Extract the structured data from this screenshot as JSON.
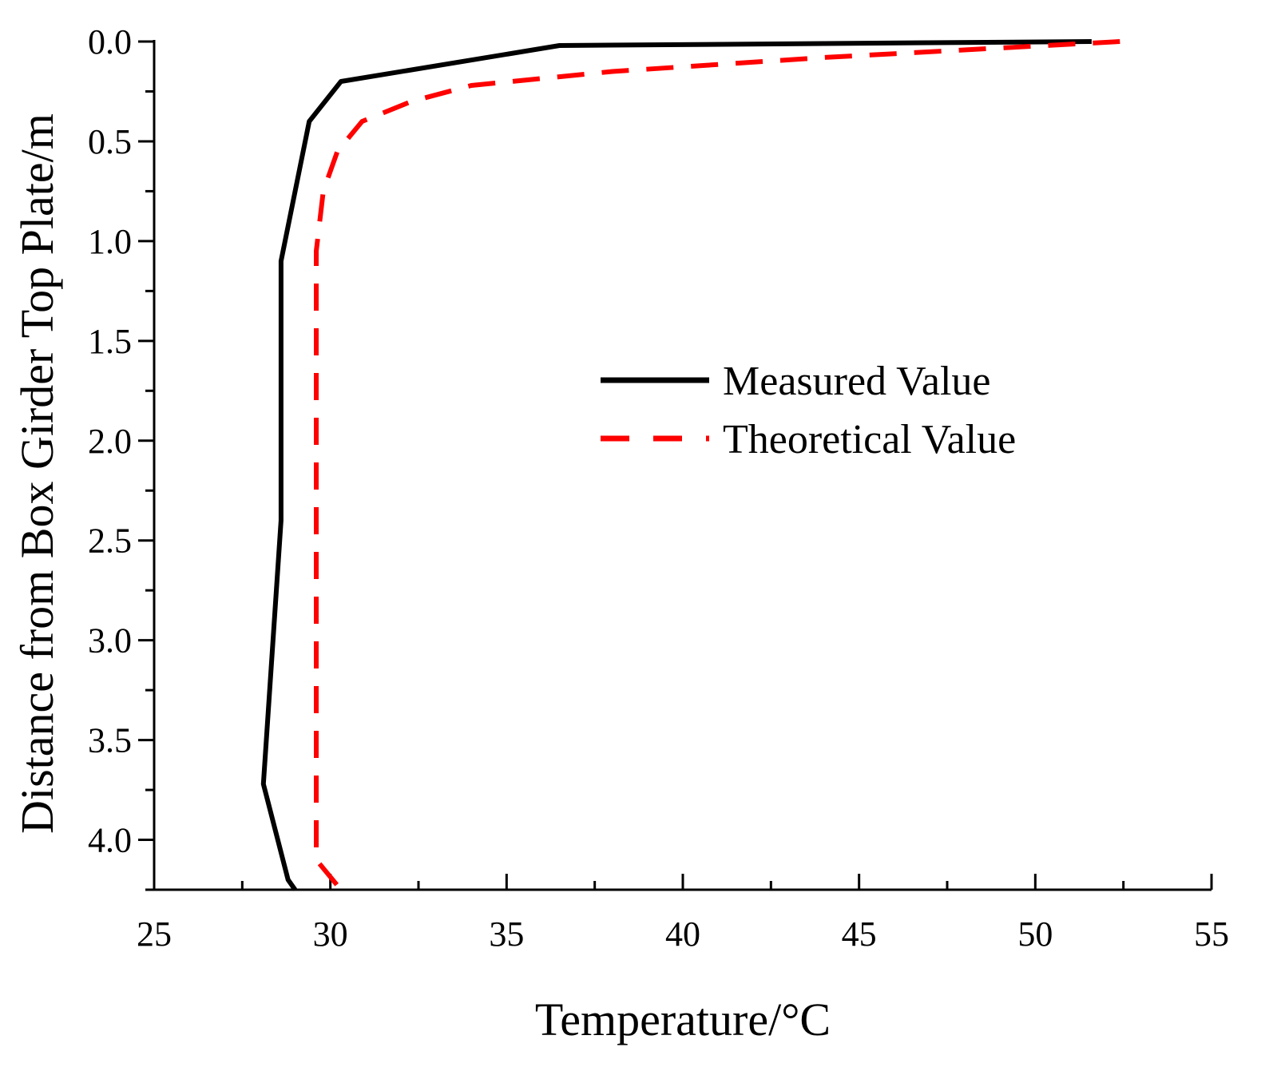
{
  "chart_data": {
    "type": "line",
    "title": "",
    "xlabel": "Temperature/°C",
    "ylabel": "Distance from Box Girder  Top Plate/m",
    "xlim": [
      25,
      55
    ],
    "ylim": [
      0,
      4.25
    ],
    "y_inverted": true,
    "x_ticks": [
      "25",
      "30",
      "35",
      "40",
      "45",
      "50",
      "55"
    ],
    "y_ticks": [
      "0.0",
      "0.5",
      "1.0",
      "1.5",
      "2.0",
      "2.5",
      "3.0",
      "3.5",
      "4.0"
    ],
    "legend_position": "center-right",
    "series": [
      {
        "name": "Measured Value",
        "color": "#000000",
        "style": "solid",
        "points": [
          [
            51.6,
            0.0
          ],
          [
            36.5,
            0.02
          ],
          [
            30.3,
            0.2
          ],
          [
            29.4,
            0.4
          ],
          [
            28.6,
            1.1
          ],
          [
            28.6,
            2.4
          ],
          [
            28.1,
            3.72
          ],
          [
            28.8,
            4.2
          ],
          [
            29.0,
            4.25
          ]
        ]
      },
      {
        "name": "Theoretical Value",
        "color": "#ff0000",
        "style": "dashed",
        "points": [
          [
            52.4,
            0.0
          ],
          [
            44.0,
            0.08
          ],
          [
            38.0,
            0.15
          ],
          [
            34.0,
            0.22
          ],
          [
            32.3,
            0.3
          ],
          [
            30.9,
            0.4
          ],
          [
            30.2,
            0.55
          ],
          [
            29.8,
            0.75
          ],
          [
            29.6,
            1.05
          ],
          [
            29.6,
            4.1
          ],
          [
            30.3,
            4.25
          ]
        ]
      }
    ]
  }
}
